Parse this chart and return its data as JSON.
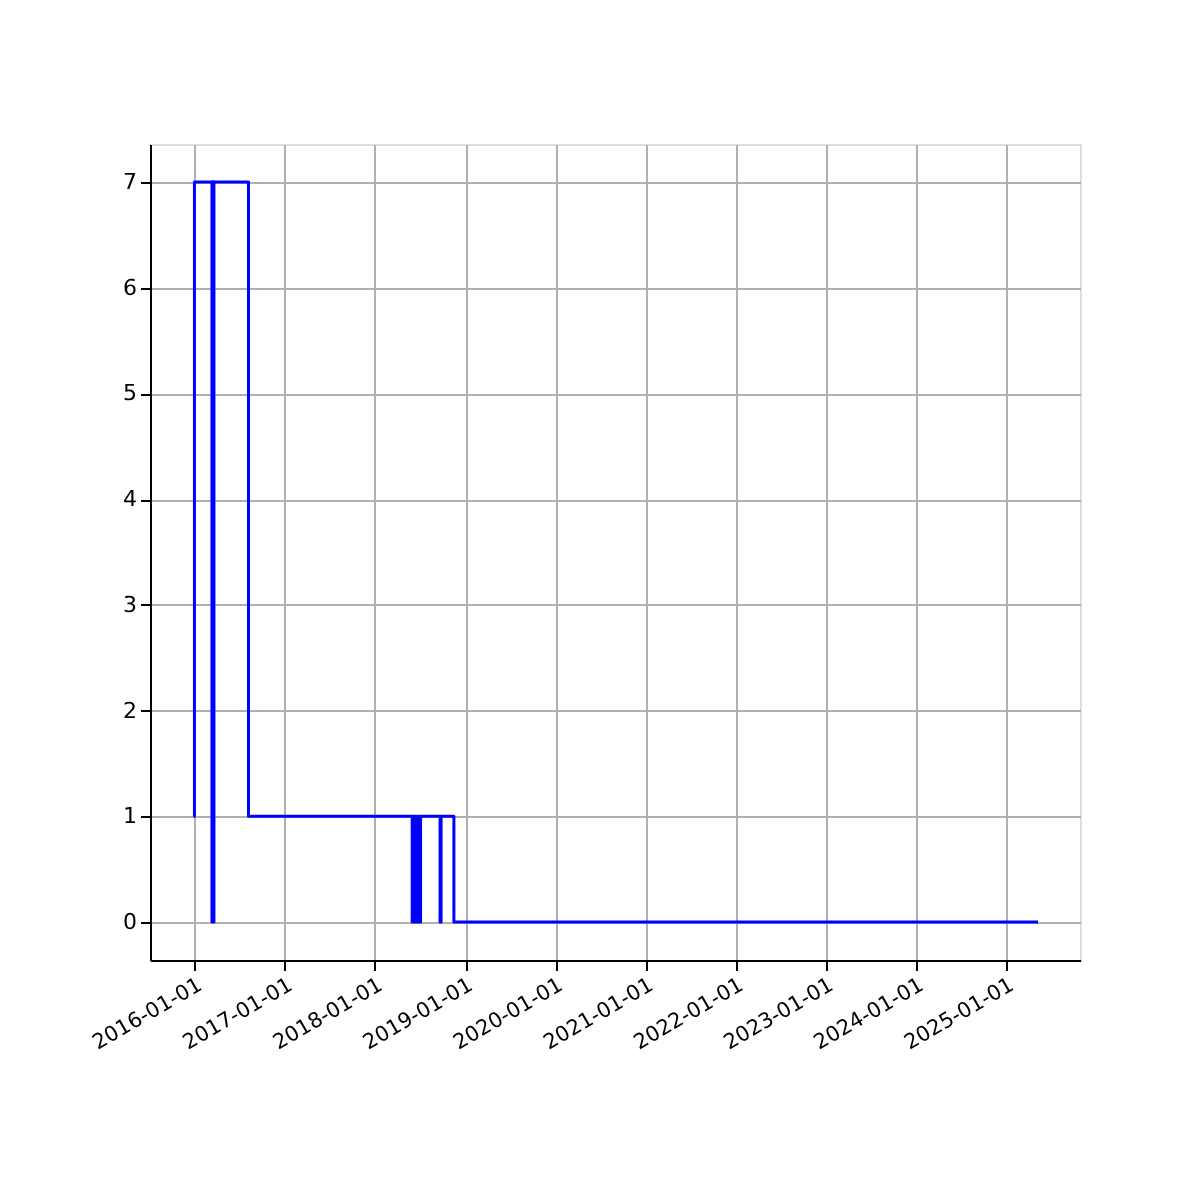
{
  "chart_data": {
    "type": "step",
    "x": [
      "2015-12-28",
      "2016-01-01",
      "2016-03-10",
      "2016-03-12",
      "2016-03-14",
      "2016-03-18",
      "2016-03-20",
      "2016-08-07",
      "2018-06-01",
      "2018-06-05",
      "2018-06-10",
      "2018-06-14",
      "2018-06-20",
      "2018-06-25",
      "2018-07-01",
      "2018-07-05",
      "2018-09-22",
      "2018-09-26",
      "2018-11-17",
      "2025-05-10"
    ],
    "series": [
      {
        "color": "#0000ff",
        "values": [
          1,
          7,
          7,
          0,
          7,
          0,
          7,
          1,
          0,
          1,
          0,
          1,
          0,
          1,
          0,
          1,
          0,
          1,
          0,
          0
        ]
      }
    ],
    "xlim": [
      "2015-07-05",
      "2025-10-27"
    ],
    "xticks": [
      "2016-01-01",
      "2017-01-01",
      "2018-01-01",
      "2019-01-01",
      "2020-01-01",
      "2021-01-01",
      "2022-01-01",
      "2023-01-01",
      "2024-01-01",
      "2025-01-01"
    ],
    "ylim": [
      -0.36,
      7.36
    ],
    "yticks": [
      0,
      1,
      2,
      3,
      4,
      5,
      6,
      7
    ],
    "grid": true
  }
}
